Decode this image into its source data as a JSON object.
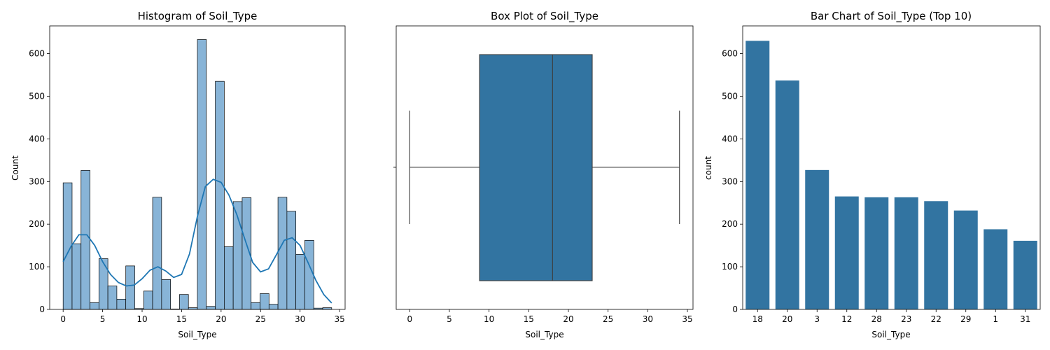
{
  "chart_data": [
    {
      "type": "histogram",
      "title": "Histogram of Soil_Type",
      "xlabel": "Soil_Type",
      "ylabel": "Count",
      "xlim": [
        -1.7,
        35.7
      ],
      "ylim": [
        0,
        665
      ],
      "xticks": [
        0,
        5,
        10,
        15,
        20,
        25,
        30,
        35
      ],
      "yticks": [
        0,
        100,
        200,
        300,
        400,
        500,
        600
      ],
      "bin_edges": [
        0,
        1.1333,
        2.2667,
        3.4,
        4.5333,
        5.6667,
        6.8,
        7.9333,
        9.0667,
        10.2,
        11.3333,
        12.4667,
        13.6,
        14.7333,
        15.8667,
        17.0,
        18.1333,
        19.2667,
        20.4,
        21.5333,
        22.6667,
        23.8,
        24.9333,
        26.0667,
        27.2,
        28.3333,
        29.4667,
        30.6,
        31.7333,
        32.8667,
        34.0
      ],
      "counts": [
        297,
        154,
        326,
        16,
        119,
        55,
        24,
        102,
        2,
        43,
        263,
        70,
        1,
        35,
        4,
        633,
        7,
        535,
        147,
        253,
        262,
        16,
        37,
        12,
        263,
        230,
        129,
        162,
        3,
        4
      ],
      "kde": {
        "x": [
          0,
          1,
          2,
          3,
          4,
          5,
          6,
          7,
          8,
          9,
          10,
          11,
          12,
          13,
          14,
          15,
          16,
          17,
          18,
          19,
          20,
          21,
          22,
          23,
          24,
          25,
          26,
          27,
          28,
          29,
          30,
          31,
          32,
          33,
          34
        ],
        "y": [
          112,
          148,
          175,
          175,
          150,
          112,
          82,
          63,
          55,
          57,
          72,
          92,
          100,
          90,
          75,
          82,
          130,
          218,
          288,
          305,
          298,
          268,
          222,
          165,
          110,
          88,
          95,
          128,
          162,
          168,
          150,
          110,
          68,
          35,
          15
        ]
      },
      "bar_color": "#88b4d7",
      "line_color": "#1f77b4"
    },
    {
      "type": "box",
      "title": "Box Plot of Soil_Type",
      "xlabel": "Soil_Type",
      "xlim": [
        -1.7,
        35.7
      ],
      "xticks": [
        0,
        5,
        10,
        15,
        20,
        25,
        30,
        35
      ],
      "whisker_low": 0,
      "q1": 8.8,
      "median": 18,
      "q3": 23,
      "whisker_high": 34,
      "box_color": "#3274a1"
    },
    {
      "type": "bar",
      "title": "Bar Chart of Soil_Type (Top 10)",
      "xlabel": "Soil_Type",
      "ylabel": "count",
      "categories": [
        "18",
        "20",
        "3",
        "12",
        "28",
        "23",
        "22",
        "29",
        "1",
        "31"
      ],
      "values": [
        630,
        537,
        327,
        265,
        263,
        263,
        254,
        232,
        188,
        161
      ],
      "ylim": [
        0,
        665
      ],
      "yticks": [
        0,
        100,
        200,
        300,
        400,
        500,
        600
      ],
      "bar_color": "#3274a1"
    }
  ]
}
